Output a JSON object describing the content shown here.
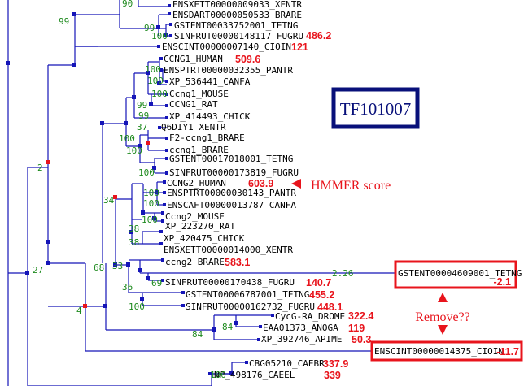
{
  "family_id": "TF101007",
  "annotations": {
    "hmmer_label": "HMMER score",
    "remove_label": "Remove??"
  },
  "leaves": [
    {
      "id": "l01",
      "label": "ENSXETT00000009033_XENTR",
      "score": ""
    },
    {
      "id": "l02",
      "label": "ENSDART00000050533_BRARE",
      "score": ""
    },
    {
      "id": "l03",
      "label": "GSTENT00033752001_TETNG",
      "score": ""
    },
    {
      "id": "l04",
      "label": "SINFRUT00000148117_FUGRU",
      "score": "486.2"
    },
    {
      "id": "l05",
      "label": "ENSCINT00000007140_CIOIN",
      "score": "121"
    },
    {
      "id": "l06",
      "label": "CCNG1_HUMAN",
      "score": "509.6"
    },
    {
      "id": "l07",
      "label": "ENSPTRT00000032355_PANTR",
      "score": ""
    },
    {
      "id": "l08",
      "label": "XP_536441_CANFA",
      "score": ""
    },
    {
      "id": "l09",
      "label": "Ccng1_MOUSE",
      "score": ""
    },
    {
      "id": "l10",
      "label": "CCNG1_RAT",
      "score": ""
    },
    {
      "id": "l11",
      "label": "XP_414493_CHICK",
      "score": ""
    },
    {
      "id": "l12",
      "label": "Q6DIY1_XENTR",
      "score": ""
    },
    {
      "id": "l13",
      "label": "F2-ccng1_BRARE",
      "score": ""
    },
    {
      "id": "l14",
      "label": "ccng1_BRARE",
      "score": ""
    },
    {
      "id": "l15",
      "label": "GSTENT00017018001_TETNG",
      "score": ""
    },
    {
      "id": "l16",
      "label": "SINFRUT00000173819_FUGRU",
      "score": ""
    },
    {
      "id": "l17",
      "label": "CCNG2_HUMAN",
      "score": "603.9"
    },
    {
      "id": "l18",
      "label": "ENSPTRT00000030143_PANTR",
      "score": ""
    },
    {
      "id": "l19",
      "label": "ENSCAFT00000013787_CANFA",
      "score": ""
    },
    {
      "id": "l20",
      "label": "Ccng2_MOUSE",
      "score": ""
    },
    {
      "id": "l21",
      "label": "XP_223270_RAT",
      "score": ""
    },
    {
      "id": "l22",
      "label": "XP_420475_CHICK",
      "score": ""
    },
    {
      "id": "l23",
      "label": "ENSXETT00000014000_XENTR",
      "score": ""
    },
    {
      "id": "l24",
      "label": "ccng2_BRARE",
      "score": "583.1"
    },
    {
      "id": "l25",
      "label": "SINFRUT00000170438_FUGRU",
      "score": "140.7"
    },
    {
      "id": "l26",
      "label": "GSTENT00006787001_TETNG",
      "score": "455.2"
    },
    {
      "id": "l27",
      "label": "SINFRUT00000162732_FUGRU",
      "score": "448.1"
    },
    {
      "id": "l28",
      "label": "CycG-RA_DROME",
      "score": "322.4"
    },
    {
      "id": "l29",
      "label": "EAA01373_ANOGA",
      "score": "119"
    },
    {
      "id": "l30",
      "label": "XP_392746_APIME",
      "score": "50.3"
    },
    {
      "id": "l31",
      "label": "CBG05210_CAEBR",
      "score": "337.9"
    },
    {
      "id": "l32",
      "label": "NP_498176_CAEEL",
      "score": "339"
    }
  ],
  "flagged": [
    {
      "id": "f1",
      "label": "GSTENT00004609001_TETNG",
      "score": "-2.1",
      "branch_length": "2.26"
    },
    {
      "id": "f2",
      "label": "ENSCINT00000014375_CIOIN",
      "score": "-11.7"
    }
  ],
  "bootstrap": [
    {
      "id": "b01",
      "value": "90"
    },
    {
      "id": "b02",
      "value": "99"
    },
    {
      "id": "b03",
      "value": "99"
    },
    {
      "id": "b04",
      "value": "100"
    },
    {
      "id": "b05",
      "value": "100"
    },
    {
      "id": "b06",
      "value": "100"
    },
    {
      "id": "b07",
      "value": "100"
    },
    {
      "id": "b08",
      "value": "99"
    },
    {
      "id": "b09",
      "value": "99"
    },
    {
      "id": "b10",
      "value": "37"
    },
    {
      "id": "b11",
      "value": "100"
    },
    {
      "id": "b12",
      "value": "100"
    },
    {
      "id": "b13",
      "value": "100"
    },
    {
      "id": "b14",
      "value": "100"
    },
    {
      "id": "b15",
      "value": "100"
    },
    {
      "id": "b16",
      "value": "100"
    },
    {
      "id": "b17",
      "value": "38"
    },
    {
      "id": "b18",
      "value": "38"
    },
    {
      "id": "b19",
      "value": "34"
    },
    {
      "id": "b20",
      "value": "33"
    },
    {
      "id": "b21",
      "value": "69"
    },
    {
      "id": "b22",
      "value": "36"
    },
    {
      "id": "b23",
      "value": "100"
    },
    {
      "id": "b24",
      "value": "68"
    },
    {
      "id": "b25",
      "value": "84"
    },
    {
      "id": "b26",
      "value": "84"
    },
    {
      "id": "b27",
      "value": "2"
    },
    {
      "id": "b28",
      "value": "27"
    },
    {
      "id": "b29",
      "value": "4"
    },
    {
      "id": "b30",
      "value": "100"
    }
  ],
  "colors": {
    "branch": "#1515b8",
    "node": "#1515b8",
    "node_highlight": "#e8141c",
    "bootstrap": "#1e8a1e",
    "score": "#e8141c",
    "family_box": "#08107a",
    "flag_box": "#e8141c"
  }
}
